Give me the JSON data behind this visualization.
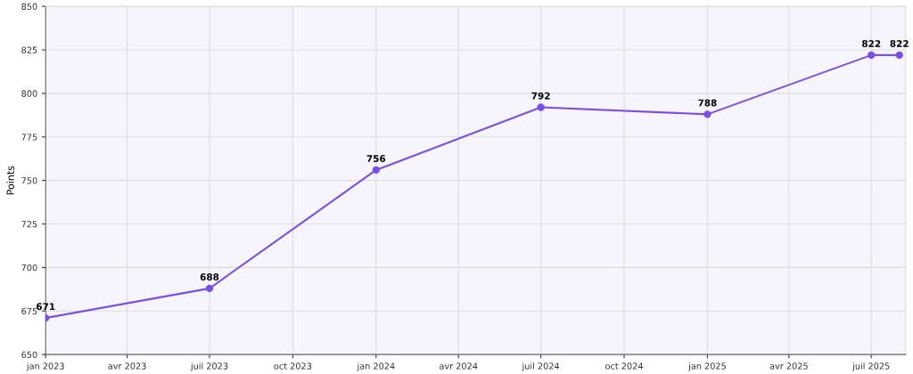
{
  "chart_data": {
    "type": "line",
    "ylabel": "Points",
    "x": [
      "2023-01-01",
      "2023-07-01",
      "2024-01-01",
      "2024-07-01",
      "2025-01-01",
      "2025-07-01",
      "2025-08-01"
    ],
    "series": [
      {
        "color": "#7b4fe6",
        "values": [
          671,
          688,
          756,
          792,
          788,
          822,
          822
        ]
      }
    ],
    "data_labels": true,
    "marker": "circle",
    "line_style": "solid",
    "grid": true,
    "xlim": [
      "2023-01-01",
      "2025-08-08"
    ],
    "xticks": [
      {
        "value": "2023-01-01",
        "label": "jan 2023"
      },
      {
        "value": "2023-04-01",
        "label": "avr 2023"
      },
      {
        "value": "2023-07-01",
        "label": "juil 2023"
      },
      {
        "value": "2023-10-01",
        "label": "oct 2023"
      },
      {
        "value": "2024-01-01",
        "label": "jan 2024"
      },
      {
        "value": "2024-04-01",
        "label": "avr 2024"
      },
      {
        "value": "2024-07-01",
        "label": "juil 2024"
      },
      {
        "value": "2024-10-01",
        "label": "oct 2024"
      },
      {
        "value": "2025-01-01",
        "label": "jan 2025"
      },
      {
        "value": "2025-04-01",
        "label": "avr 2025"
      },
      {
        "value": "2025-07-01",
        "label": "juil 2025"
      }
    ],
    "ylim": [
      650,
      850
    ],
    "yticks": [
      650,
      675,
      700,
      725,
      750,
      775,
      800,
      825,
      850
    ]
  }
}
